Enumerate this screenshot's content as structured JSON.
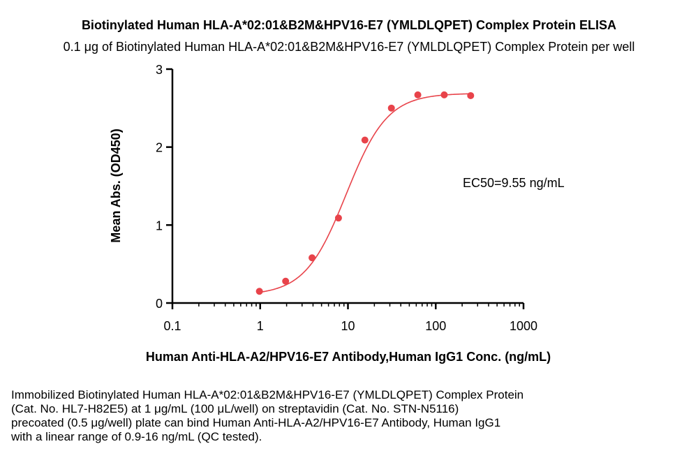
{
  "chart_data": {
    "type": "scatter",
    "title": "Biotinylated Human HLA-A*02:01&B2M&HPV16-E7 (YMLDLQPET) Complex Protein ELISA",
    "subtitle": "0.1 μg of Biotinylated Human HLA-A*02:01&B2M&HPV16-E7 (YMLDLQPET) Complex Protein per well",
    "xlabel": "Human Anti-HLA-A2/HPV16-E7 Antibody,Human IgG1 Conc. (ng/mL)",
    "ylabel": "Mean Abs. (OD450)",
    "x_scale": "log",
    "xlim": [
      0.1,
      1000
    ],
    "ylim": [
      0,
      3
    ],
    "x_ticks": [
      0.1,
      1,
      10,
      100,
      1000
    ],
    "x_tick_labels": [
      "0.1",
      "1",
      "10",
      "100",
      "1000"
    ],
    "y_ticks": [
      0,
      1,
      2,
      3
    ],
    "y_tick_labels": [
      "0",
      "1",
      "2",
      "3"
    ],
    "grid": false,
    "series": [
      {
        "color": "#e8434a",
        "x": [
          0.98,
          1.95,
          3.9,
          7.8,
          15.6,
          31.25,
          62.5,
          125,
          250
        ],
        "y": [
          0.15,
          0.28,
          0.58,
          1.09,
          2.09,
          2.5,
          2.67,
          2.67,
          2.66
        ]
      }
    ],
    "fit": {
      "type": "4PL",
      "bottom": 0.1,
      "top": 2.69,
      "ec50": 9.55,
      "hill": 1.85,
      "color": "#e8434a"
    },
    "annotations": [
      {
        "text": "EC50=9.55 ng/mL"
      }
    ]
  },
  "caption_lines": [
    "Immobilized Biotinylated Human HLA-A*02:01&B2M&HPV16-E7 (YMLDLQPET) Complex Protein",
    "(Cat. No. HL7-H82E5) at 1 μg/mL (100 μL/well) on streptavidin (Cat. No. STN-N5116)",
    "precoated (0.5 μg/well) plate can bind Human Anti-HLA-A2/HPV16-E7 Antibody, Human IgG1",
    "with a linear range of 0.9-16 ng/mL (QC tested)."
  ]
}
